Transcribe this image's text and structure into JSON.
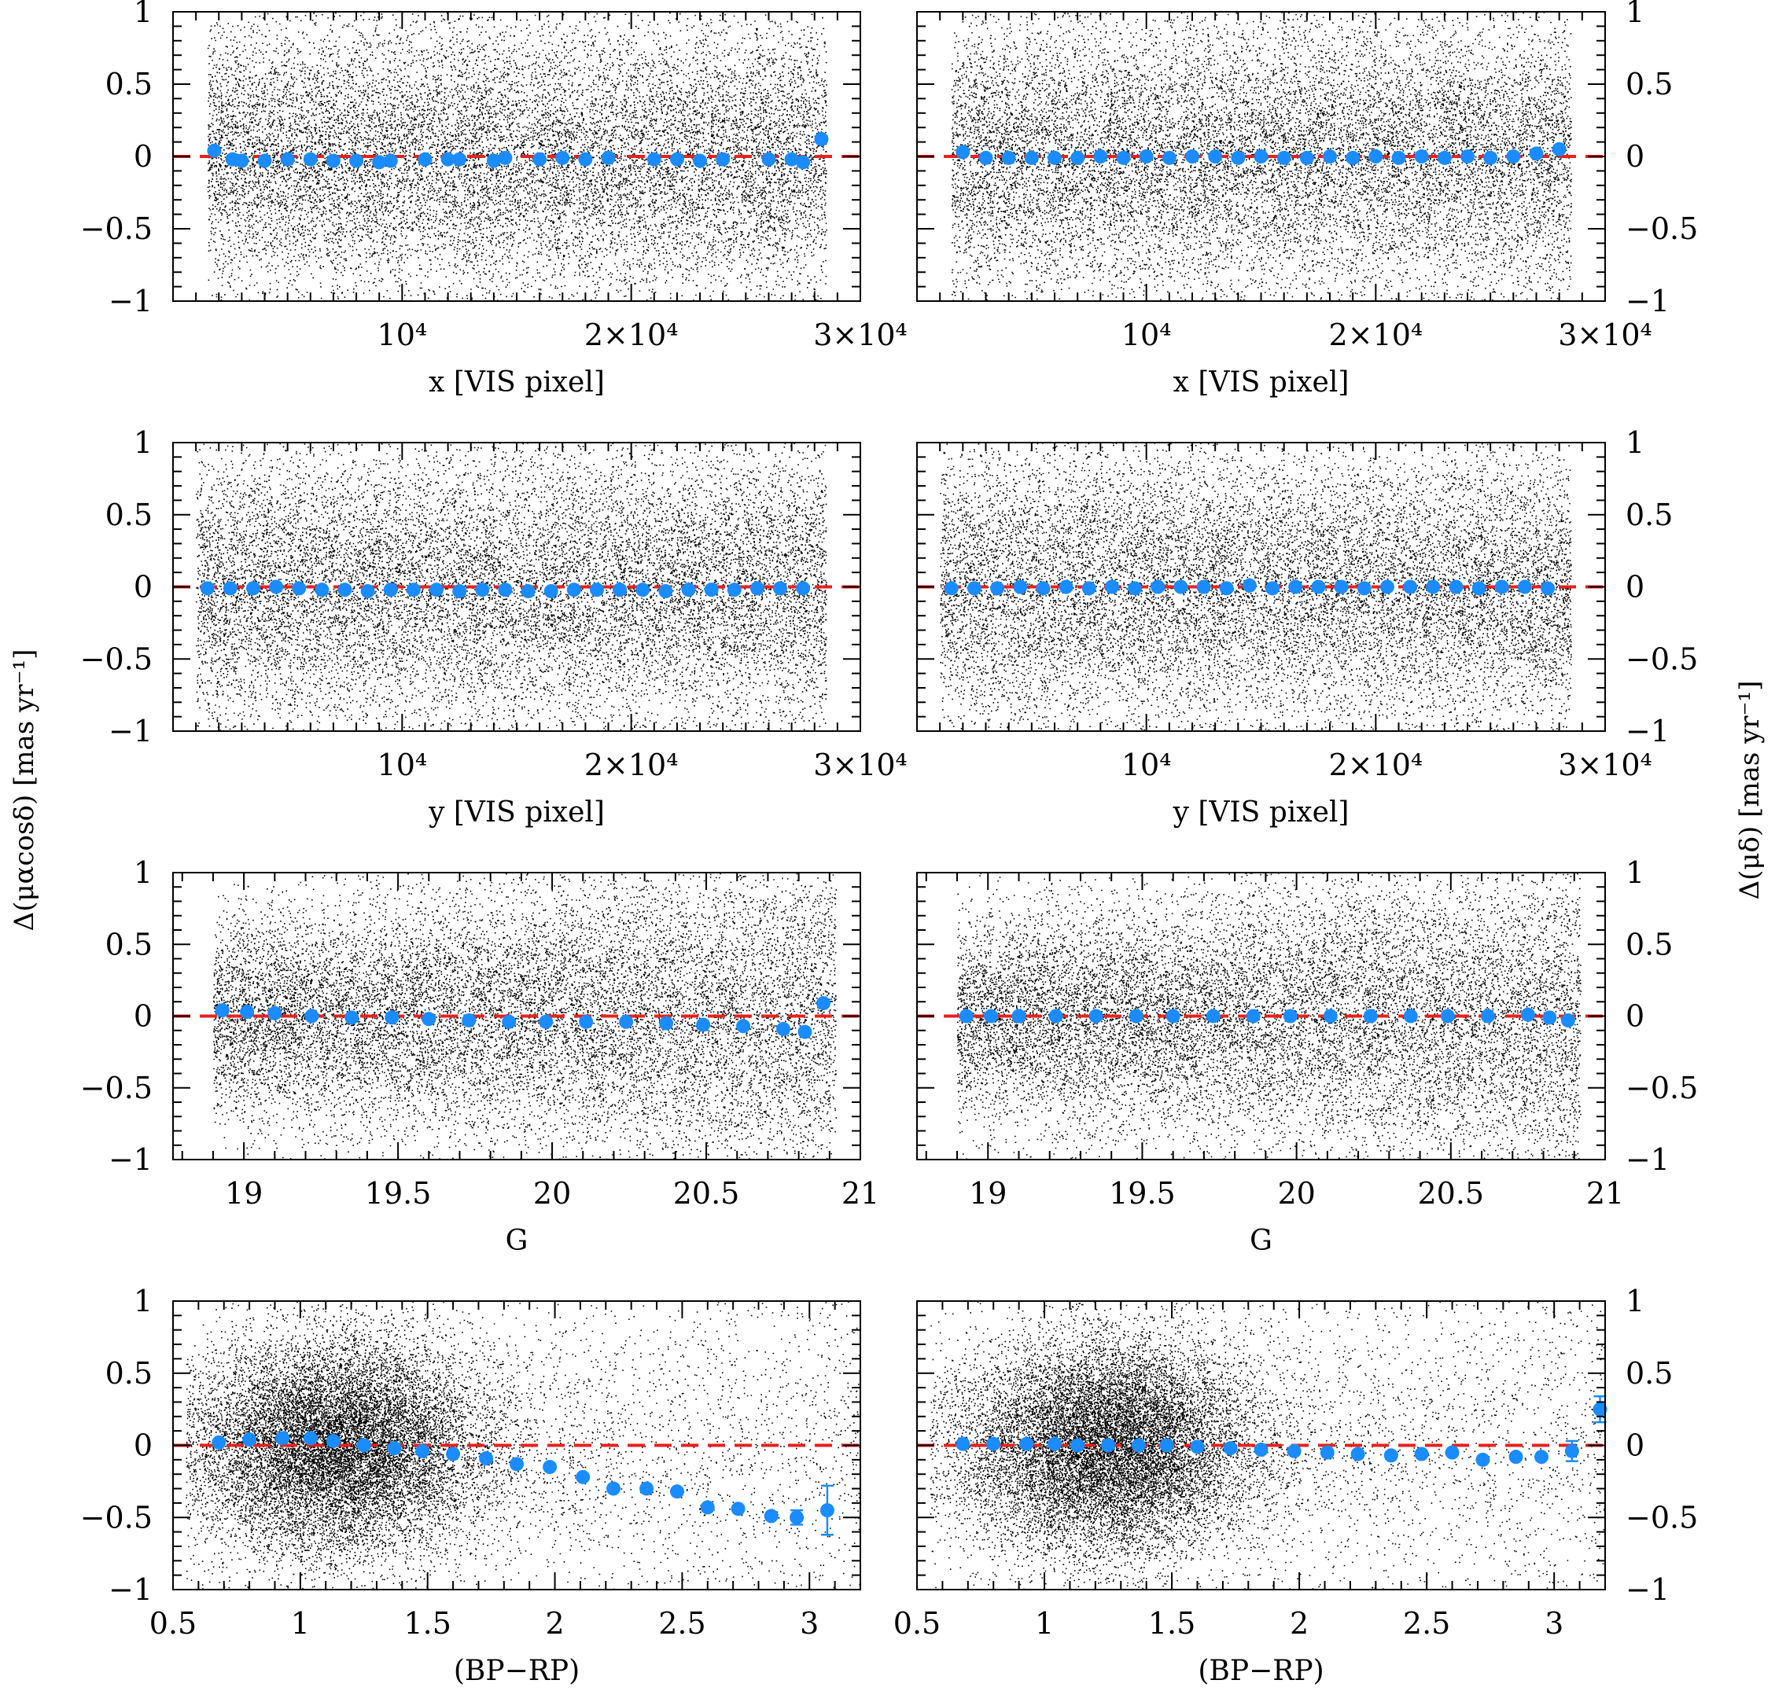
{
  "colors": {
    "scatter": "#000000",
    "binned_points": "#1a8cff",
    "zero_line": "#e8201c",
    "frame": "#000000"
  },
  "y_axis_labels": {
    "left": "Δ(μαcosδ) [mas yr⁻¹]",
    "right": "Δ(μδ) [mas yr⁻¹]"
  },
  "chart_data": [
    {
      "type": "scatter",
      "panel": "row1-left",
      "ylabel_side": "left",
      "xlabel": "x [VIS pixel]",
      "xlim": [
        0,
        30000
      ],
      "ylim": [
        -1,
        1
      ],
      "xticks": [
        10000,
        20000,
        30000
      ],
      "xtick_labels": [
        "10⁴",
        "2×10⁴",
        "3×10⁴"
      ],
      "yticks": [
        -1,
        -0.5,
        0,
        0.5,
        1
      ],
      "ytick_labels": [
        "−1",
        "−0.5",
        "0",
        "0.5",
        "1"
      ],
      "reference_line": 0,
      "scatter_xrange": [
        1500,
        28500
      ],
      "binned": {
        "x": [
          1800,
          2600,
          3000,
          4000,
          5000,
          6000,
          7000,
          8000,
          9000,
          9500,
          11000,
          12000,
          12500,
          14000,
          14500,
          16000,
          17000,
          18000,
          19000,
          21000,
          22000,
          23000,
          24000,
          26000,
          27000,
          27500,
          28300
        ],
        "y": [
          0.04,
          -0.02,
          -0.03,
          -0.03,
          -0.02,
          -0.02,
          -0.03,
          -0.03,
          -0.04,
          -0.03,
          -0.02,
          -0.02,
          -0.02,
          -0.03,
          -0.01,
          -0.02,
          -0.01,
          -0.02,
          -0.01,
          -0.02,
          -0.02,
          -0.03,
          -0.02,
          -0.02,
          -0.02,
          -0.04,
          0.12
        ],
        "err": [
          0.02,
          0.01,
          0.01,
          0.01,
          0.01,
          0.01,
          0.01,
          0.01,
          0.01,
          0.01,
          0.01,
          0.01,
          0.01,
          0.01,
          0.01,
          0.01,
          0.01,
          0.01,
          0.01,
          0.01,
          0.01,
          0.01,
          0.01,
          0.01,
          0.01,
          0.01,
          0.03
        ]
      }
    },
    {
      "type": "scatter",
      "panel": "row1-right",
      "ylabel_side": "right",
      "xlabel": "x [VIS pixel]",
      "xlim": [
        0,
        30000
      ],
      "ylim": [
        -1,
        1
      ],
      "xticks": [
        10000,
        20000,
        30000
      ],
      "xtick_labels": [
        "10⁴",
        "2×10⁴",
        "3×10⁴"
      ],
      "yticks": [
        -1,
        -0.5,
        0,
        0.5,
        1
      ],
      "ytick_labels": [
        "−1",
        "−0.5",
        "0",
        "0.5",
        "1"
      ],
      "reference_line": 0,
      "scatter_xrange": [
        1500,
        28500
      ],
      "binned": {
        "x": [
          2000,
          3000,
          4000,
          5000,
          6000,
          7000,
          8000,
          9000,
          10000,
          11000,
          12000,
          13000,
          14000,
          15000,
          16000,
          17000,
          18000,
          19000,
          20000,
          21000,
          22000,
          23000,
          24000,
          25000,
          26000,
          27000,
          28000
        ],
        "y": [
          0.03,
          -0.01,
          -0.01,
          -0.01,
          -0.01,
          -0.01,
          0.0,
          -0.01,
          0.0,
          -0.01,
          0.0,
          0.0,
          -0.01,
          0.0,
          -0.01,
          -0.01,
          0.0,
          -0.01,
          0.0,
          -0.01,
          0.0,
          -0.01,
          0.0,
          -0.01,
          0.0,
          0.02,
          0.05
        ],
        "err": [
          0.01,
          0.01,
          0.01,
          0.01,
          0.01,
          0.01,
          0.01,
          0.01,
          0.01,
          0.01,
          0.01,
          0.01,
          0.01,
          0.01,
          0.01,
          0.01,
          0.01,
          0.01,
          0.01,
          0.01,
          0.01,
          0.01,
          0.01,
          0.01,
          0.01,
          0.01,
          0.01
        ]
      }
    },
    {
      "type": "scatter",
      "panel": "row2-left",
      "ylabel_side": "left",
      "xlabel": "y [VIS pixel]",
      "xlim": [
        0,
        30000
      ],
      "ylim": [
        -1,
        1
      ],
      "xticks": [
        10000,
        20000,
        30000
      ],
      "xtick_labels": [
        "10⁴",
        "2×10⁴",
        "3×10⁴"
      ],
      "yticks": [
        -1,
        -0.5,
        0,
        0.5,
        1
      ],
      "ytick_labels": [
        "−1",
        "−0.5",
        "0",
        "0.5",
        "1"
      ],
      "reference_line": 0,
      "scatter_xrange": [
        1000,
        28500
      ],
      "binned": {
        "x": [
          1500,
          2500,
          3500,
          4500,
          5500,
          6500,
          7500,
          8500,
          9500,
          10500,
          11500,
          12500,
          13500,
          14500,
          15500,
          16500,
          17500,
          18500,
          19500,
          20500,
          21500,
          22500,
          23500,
          24500,
          25500,
          26500,
          27500
        ],
        "y": [
          -0.01,
          -0.01,
          -0.01,
          0.0,
          -0.01,
          -0.02,
          -0.02,
          -0.03,
          -0.02,
          -0.02,
          -0.02,
          -0.03,
          -0.02,
          -0.02,
          -0.03,
          -0.03,
          -0.02,
          -0.02,
          -0.02,
          -0.02,
          -0.03,
          -0.02,
          -0.02,
          -0.02,
          -0.01,
          -0.01,
          -0.01
        ],
        "err": [
          0.01,
          0.01,
          0.01,
          0.01,
          0.01,
          0.01,
          0.01,
          0.01,
          0.01,
          0.01,
          0.01,
          0.01,
          0.01,
          0.01,
          0.01,
          0.01,
          0.01,
          0.01,
          0.01,
          0.01,
          0.01,
          0.01,
          0.01,
          0.01,
          0.01,
          0.01,
          0.01
        ]
      }
    },
    {
      "type": "scatter",
      "panel": "row2-right",
      "ylabel_side": "right",
      "xlabel": "y [VIS pixel]",
      "xlim": [
        0,
        30000
      ],
      "ylim": [
        -1,
        1
      ],
      "xticks": [
        10000,
        20000,
        30000
      ],
      "xtick_labels": [
        "10⁴",
        "2×10⁴",
        "3×10⁴"
      ],
      "yticks": [
        -1,
        -0.5,
        0,
        0.5,
        1
      ],
      "ytick_labels": [
        "−1",
        "−0.5",
        "0",
        "0.5",
        "1"
      ],
      "reference_line": 0,
      "scatter_xrange": [
        1000,
        28500
      ],
      "binned": {
        "x": [
          1500,
          2500,
          3500,
          4500,
          5500,
          6500,
          7500,
          8500,
          9500,
          10500,
          11500,
          12500,
          13500,
          14500,
          15500,
          16500,
          17500,
          18500,
          19500,
          20500,
          21500,
          22500,
          23500,
          24500,
          25500,
          26500,
          27500
        ],
        "y": [
          -0.01,
          -0.01,
          -0.01,
          0.0,
          -0.01,
          0.0,
          -0.01,
          0.0,
          -0.01,
          0.0,
          0.0,
          0.0,
          -0.01,
          0.01,
          -0.01,
          0.0,
          0.0,
          0.0,
          -0.01,
          0.0,
          0.0,
          0.0,
          0.0,
          -0.01,
          0.0,
          0.0,
          -0.01
        ],
        "err": [
          0.01,
          0.01,
          0.01,
          0.01,
          0.01,
          0.01,
          0.01,
          0.01,
          0.01,
          0.01,
          0.01,
          0.01,
          0.01,
          0.01,
          0.01,
          0.01,
          0.01,
          0.01,
          0.01,
          0.01,
          0.01,
          0.01,
          0.01,
          0.01,
          0.01,
          0.01,
          0.01
        ]
      }
    },
    {
      "type": "scatter",
      "panel": "row3-left",
      "ylabel_side": "left",
      "xlabel": "G",
      "xlim": [
        18.77,
        21.0
      ],
      "ylim": [
        -1,
        1
      ],
      "xticks": [
        19,
        19.5,
        20,
        20.5,
        21
      ],
      "xtick_labels": [
        "19",
        "19.5",
        "20",
        "20.5",
        "21"
      ],
      "yticks": [
        -1,
        -0.5,
        0,
        0.5,
        1
      ],
      "ytick_labels": [
        "−1",
        "−0.5",
        "0",
        "0.5",
        "1"
      ],
      "reference_line": 0,
      "scatter_xrange": [
        18.9,
        20.92
      ],
      "binned": {
        "x": [
          18.93,
          19.01,
          19.1,
          19.22,
          19.35,
          19.48,
          19.6,
          19.73,
          19.86,
          19.98,
          20.11,
          20.24,
          20.37,
          20.49,
          20.62,
          20.75,
          20.82,
          20.88
        ],
        "y": [
          0.04,
          0.03,
          0.02,
          0.0,
          -0.01,
          -0.01,
          -0.02,
          -0.03,
          -0.04,
          -0.04,
          -0.04,
          -0.04,
          -0.05,
          -0.06,
          -0.07,
          -0.09,
          -0.11,
          0.09
        ],
        "err": [
          0.01,
          0.01,
          0.01,
          0.01,
          0.01,
          0.01,
          0.01,
          0.01,
          0.01,
          0.01,
          0.01,
          0.01,
          0.01,
          0.01,
          0.01,
          0.01,
          0.02,
          0.04
        ]
      }
    },
    {
      "type": "scatter",
      "panel": "row3-right",
      "ylabel_side": "right",
      "xlabel": "G",
      "xlim": [
        18.77,
        21.0
      ],
      "ylim": [
        -1,
        1
      ],
      "xticks": [
        19,
        19.5,
        20,
        20.5,
        21
      ],
      "xtick_labels": [
        "19",
        "19.5",
        "20",
        "20.5",
        "21"
      ],
      "yticks": [
        -1,
        -0.5,
        0,
        0.5,
        1
      ],
      "ytick_labels": [
        "−1",
        "−0.5",
        "0",
        "0.5",
        "1"
      ],
      "reference_line": 0,
      "scatter_xrange": [
        18.9,
        20.92
      ],
      "binned": {
        "x": [
          18.93,
          19.01,
          19.1,
          19.22,
          19.35,
          19.48,
          19.6,
          19.73,
          19.86,
          19.98,
          20.11,
          20.24,
          20.37,
          20.49,
          20.62,
          20.75,
          20.82,
          20.88
        ],
        "y": [
          0.0,
          0.0,
          0.0,
          0.0,
          0.0,
          0.0,
          0.0,
          0.0,
          0.0,
          0.0,
          0.0,
          0.0,
          0.0,
          0.0,
          0.0,
          0.01,
          -0.01,
          -0.03
        ],
        "err": [
          0.01,
          0.01,
          0.01,
          0.01,
          0.01,
          0.01,
          0.01,
          0.01,
          0.01,
          0.01,
          0.01,
          0.01,
          0.01,
          0.01,
          0.01,
          0.01,
          0.02,
          0.02
        ]
      }
    },
    {
      "type": "scatter",
      "panel": "row4-left",
      "ylabel_side": "left",
      "xlabel": "(BP−RP)",
      "xlim": [
        0.5,
        3.2
      ],
      "ylim": [
        -1,
        1
      ],
      "xticks": [
        0.5,
        1,
        1.5,
        2,
        2.5,
        3
      ],
      "xtick_labels": [
        "0.5",
        "1",
        "1.5",
        "2",
        "2.5",
        "3"
      ],
      "yticks": [
        -1,
        -0.5,
        0,
        0.5,
        1
      ],
      "ytick_labels": [
        "−1",
        "−0.5",
        "0",
        "0.5",
        "1"
      ],
      "reference_line": 0,
      "scatter_xrange": [
        0.55,
        3.2
      ],
      "binned": {
        "x": [
          0.68,
          0.8,
          0.93,
          1.04,
          1.13,
          1.25,
          1.37,
          1.48,
          1.6,
          1.73,
          1.85,
          1.98,
          2.11,
          2.23,
          2.36,
          2.48,
          2.6,
          2.72,
          2.85,
          2.95,
          3.07
        ],
        "y": [
          0.02,
          0.04,
          0.05,
          0.05,
          0.03,
          0.0,
          -0.02,
          -0.04,
          -0.06,
          -0.09,
          -0.13,
          -0.15,
          -0.22,
          -0.3,
          -0.3,
          -0.32,
          -0.43,
          -0.44,
          -0.49,
          -0.5,
          -0.45
        ],
        "err": [
          0.01,
          0.01,
          0.01,
          0.01,
          0.01,
          0.01,
          0.01,
          0.01,
          0.01,
          0.01,
          0.01,
          0.01,
          0.01,
          0.01,
          0.01,
          0.01,
          0.02,
          0.03,
          0.04,
          0.05,
          0.17
        ]
      }
    },
    {
      "type": "scatter",
      "panel": "row4-right",
      "ylabel_side": "right",
      "xlabel": "(BP−RP)",
      "xlim": [
        0.5,
        3.2
      ],
      "ylim": [
        -1,
        1
      ],
      "xticks": [
        0.5,
        1,
        1.5,
        2,
        2.5,
        3
      ],
      "xtick_labels": [
        "0.5",
        "1",
        "1.5",
        "2",
        "2.5",
        "3"
      ],
      "yticks": [
        -1,
        -0.5,
        0,
        0.5,
        1
      ],
      "ytick_labels": [
        "−1",
        "−0.5",
        "0",
        "0.5",
        "1"
      ],
      "reference_line": 0,
      "scatter_xrange": [
        0.55,
        3.2
      ],
      "binned": {
        "x": [
          0.68,
          0.8,
          0.93,
          1.04,
          1.13,
          1.25,
          1.37,
          1.48,
          1.6,
          1.73,
          1.85,
          1.98,
          2.11,
          2.23,
          2.36,
          2.48,
          2.6,
          2.72,
          2.85,
          2.95,
          3.07,
          3.18
        ],
        "y": [
          0.01,
          0.01,
          0.01,
          0.01,
          0.0,
          0.0,
          0.0,
          0.0,
          -0.01,
          -0.02,
          -0.03,
          -0.04,
          -0.05,
          -0.06,
          -0.07,
          -0.06,
          -0.05,
          -0.1,
          -0.08,
          -0.08,
          -0.04,
          0.25
        ],
        "err": [
          0.01,
          0.01,
          0.01,
          0.01,
          0.01,
          0.01,
          0.01,
          0.01,
          0.01,
          0.01,
          0.01,
          0.01,
          0.01,
          0.01,
          0.01,
          0.01,
          0.01,
          0.02,
          0.02,
          0.03,
          0.07,
          0.09
        ]
      }
    }
  ]
}
